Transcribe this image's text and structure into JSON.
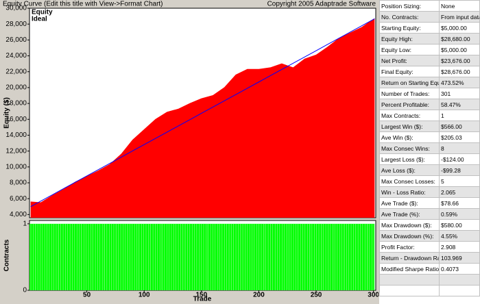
{
  "chart_data": [
    {
      "type": "area",
      "title": "Equity Curve (Edit this title with View->Format Chart)",
      "subtitle": "Copyright 2005 Adaptrade Software",
      "y_label": "Equity ($)",
      "x": [
        1,
        10,
        20,
        30,
        40,
        50,
        60,
        70,
        80,
        90,
        100,
        110,
        120,
        130,
        140,
        150,
        160,
        170,
        180,
        190,
        200,
        210,
        220,
        230,
        240,
        250,
        260,
        270,
        280,
        290,
        300,
        301
      ],
      "series": [
        {
          "name": "Equity",
          "color": "#ff0000",
          "values": [
            5600,
            5500,
            6400,
            7200,
            8100,
            8800,
            9500,
            10300,
            11600,
            13400,
            14700,
            16000,
            16900,
            17300,
            18000,
            18600,
            19000,
            20000,
            21600,
            22300,
            22300,
            22500,
            23000,
            22500,
            23600,
            24100,
            25100,
            26200,
            26900,
            27600,
            28600,
            28676
          ]
        },
        {
          "name": "Ideal",
          "color": "#0000ff",
          "values": [
            5000,
            5710,
            6500,
            7289,
            8078,
            8867,
            9656,
            10445,
            11234,
            12024,
            12813,
            13602,
            14391,
            15180,
            15969,
            16759,
            17548,
            18337,
            19126,
            19915,
            20704,
            21493,
            22283,
            23072,
            23861,
            24650,
            25439,
            26228,
            27018,
            27807,
            28596,
            28676
          ]
        }
      ],
      "xlim": [
        0,
        302
      ],
      "ylim": [
        3600,
        30000
      ],
      "yticks": [
        {
          "value": 4000,
          "label": "4,000"
        },
        {
          "value": 6000,
          "label": "6,000"
        },
        {
          "value": 8000,
          "label": "8,000"
        },
        {
          "value": 10000,
          "label": "10,000"
        },
        {
          "value": 12000,
          "label": "12,000"
        },
        {
          "value": 14000,
          "label": "14,000"
        },
        {
          "value": 16000,
          "label": "16,000"
        },
        {
          "value": 18000,
          "label": "18,000"
        },
        {
          "value": 20000,
          "label": "20,000"
        },
        {
          "value": 22000,
          "label": "22,000"
        },
        {
          "value": 24000,
          "label": "24,000"
        },
        {
          "value": 26000,
          "label": "26,000"
        },
        {
          "value": 28000,
          "label": "28,000"
        },
        {
          "value": 30000,
          "label": "30,000"
        }
      ]
    },
    {
      "type": "bar",
      "y_label": "Contracts",
      "x_label": "Trade",
      "x": [
        1,
        10,
        20,
        30,
        40,
        50,
        60,
        70,
        80,
        90,
        100,
        110,
        120,
        130,
        140,
        150,
        160,
        170,
        180,
        190,
        200,
        210,
        220,
        230,
        240,
        250,
        260,
        270,
        280,
        290,
        300,
        301
      ],
      "values": [
        1,
        1,
        1,
        1,
        1,
        1,
        1,
        1,
        1,
        1,
        1,
        1,
        1,
        1,
        1,
        1,
        1,
        1,
        1,
        1,
        1,
        1,
        1,
        1,
        1,
        1,
        1,
        1,
        1,
        1,
        1,
        1
      ],
      "color": "#00ff00",
      "xlim": [
        0,
        302
      ],
      "ylim": [
        0,
        1.05
      ],
      "yticks": [
        0,
        1
      ],
      "xticks": [
        50,
        100,
        150,
        200,
        250,
        300
      ]
    }
  ],
  "stats": {
    "rows": [
      [
        "Position Sizing:",
        "None"
      ],
      [
        "No. Contracts:",
        "From input data"
      ],
      [
        "Starting Equity:",
        "$5,000.00"
      ],
      [
        "Equity High:",
        "$28,680.00"
      ],
      [
        "Equity Low:",
        "$5,000.00"
      ],
      [
        "Net Profit:",
        "$23,676.00"
      ],
      [
        "Final Equity:",
        "$28,676.00"
      ],
      [
        "Return on Starting Equity:",
        "473.52%"
      ],
      [
        "Number of Trades:",
        "301"
      ],
      [
        "Percent Profitable:",
        "58.47%"
      ],
      [
        "Max Contracts:",
        "1"
      ],
      [
        "Largest Win ($):",
        "$566.00"
      ],
      [
        "Ave Win ($):",
        "$205.03"
      ],
      [
        "Max Consec Wins:",
        "8"
      ],
      [
        "Largest Loss ($):",
        "-$124.00"
      ],
      [
        "Ave Loss ($):",
        "-$99.28"
      ],
      [
        "Max Consec Losses:",
        "5"
      ],
      [
        "Win - Loss Ratio:",
        "2.065"
      ],
      [
        "Ave Trade ($):",
        "$78.66"
      ],
      [
        "Ave Trade (%):",
        "0.59%"
      ],
      [
        "Max Drawdown ($):",
        "$580.00"
      ],
      [
        "Max Drawdown (%):",
        "4.55%"
      ],
      [
        "Profit Factor:",
        "2.908"
      ],
      [
        "Return - Drawdown Ratio:",
        "103.969"
      ],
      [
        "Modified Sharpe Ratio:",
        "0.4073"
      ]
    ]
  }
}
